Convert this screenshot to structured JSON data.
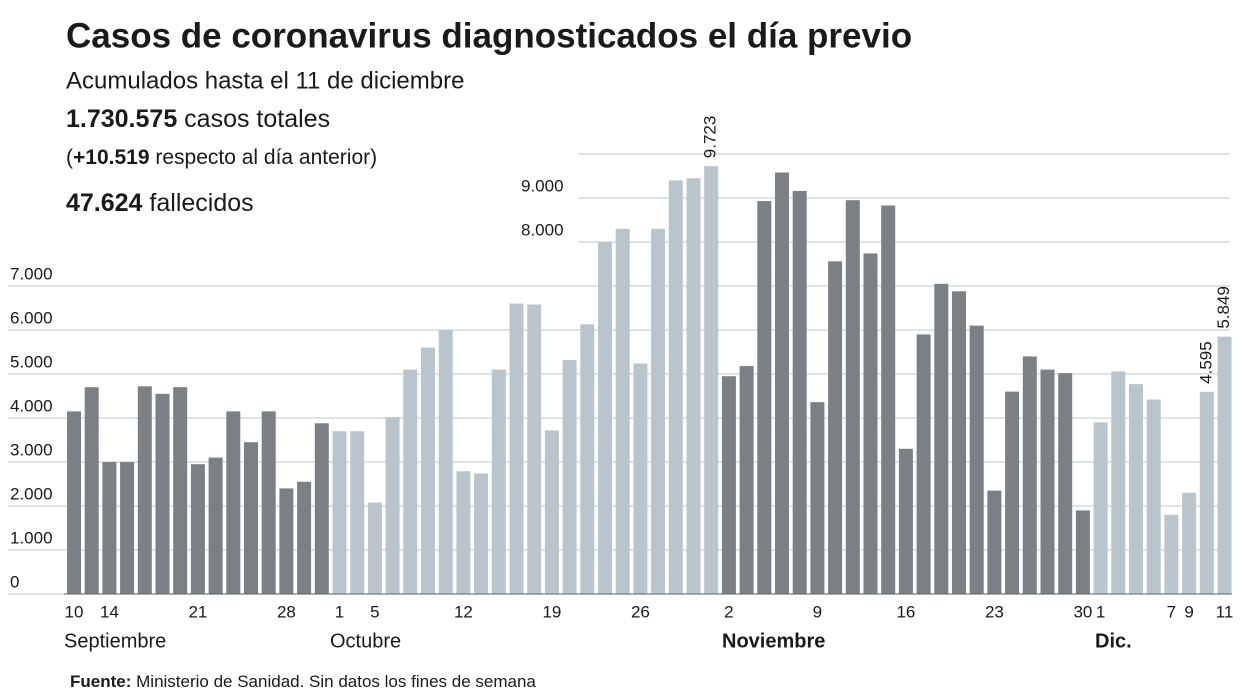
{
  "chart_data": {
    "type": "bar",
    "title": "Casos de coronavirus diagnosticados el día previo",
    "subtitle": "Acumulados hasta el 11 de diciembre",
    "stats": [
      {
        "prefix": null,
        "bold": "1.730.575",
        "text": "casos totales"
      },
      {
        "prefix": "(",
        "bold": "+10.519",
        "text": "respecto al día anterior)"
      },
      {
        "prefix": null,
        "bold": "47.624",
        "text": "fallecidos"
      }
    ],
    "source": {
      "bold": "Fuente:",
      "text": "Ministerio de Sanidad. Sin datos los fines de semana"
    },
    "ylim": [
      0,
      10000
    ],
    "yticks": [
      {
        "value": 0,
        "label": "0"
      },
      {
        "value": 1000,
        "label": "1.000"
      },
      {
        "value": 2000,
        "label": "2.000"
      },
      {
        "value": 3000,
        "label": "3.000"
      },
      {
        "value": 4000,
        "label": "4.000"
      },
      {
        "value": 5000,
        "label": "5.000"
      },
      {
        "value": 6000,
        "label": "6.000"
      },
      {
        "value": 7000,
        "label": "7.000"
      },
      {
        "value": 8000,
        "label": "8.000"
      },
      {
        "value": 9000,
        "label": "9.000"
      }
    ],
    "grid": true,
    "series": [
      {
        "name": "Septiembre",
        "color": "#7b8085",
        "bold": false,
        "categories": [
          "10",
          null,
          "14",
          null,
          null,
          null,
          null,
          "21",
          null,
          null,
          null,
          null,
          "28",
          null,
          null
        ],
        "values": [
          4150,
          4700,
          3000,
          3000,
          4720,
          4550,
          4700,
          2950,
          3100,
          4150,
          3450,
          4150,
          2400,
          2550,
          3880
        ]
      },
      {
        "name": "Octubre",
        "color": "#b9c5cc",
        "bold": false,
        "categories": [
          "1",
          null,
          "5",
          null,
          null,
          null,
          null,
          "12",
          null,
          null,
          null,
          null,
          "19",
          null,
          null,
          null,
          null,
          "26",
          null,
          null,
          null,
          null
        ],
        "values": [
          3700,
          3700,
          2080,
          4020,
          5100,
          5600,
          6000,
          2790,
          2740,
          5100,
          6600,
          6580,
          3720,
          5320,
          6130,
          8000,
          8300,
          5240,
          8300,
          9400,
          9450,
          9723
        ],
        "value_labels": [
          null,
          null,
          null,
          null,
          null,
          null,
          null,
          null,
          null,
          null,
          null,
          null,
          null,
          null,
          null,
          null,
          null,
          null,
          null,
          null,
          null,
          "9.723"
        ]
      },
      {
        "name": "Noviembre",
        "color": "#7b8085",
        "bold": true,
        "categories": [
          "2",
          null,
          null,
          null,
          null,
          "9",
          null,
          null,
          null,
          null,
          "16",
          null,
          null,
          null,
          null,
          "23",
          null,
          null,
          null,
          null,
          "30"
        ],
        "values": [
          4950,
          5180,
          8930,
          9580,
          9160,
          4360,
          7560,
          8950,
          7740,
          8830,
          3300,
          5900,
          7050,
          6880,
          6100,
          2350,
          4600,
          5400,
          5100,
          5020,
          1900
        ]
      },
      {
        "name": "Dic.",
        "color": "#b9c5cc",
        "bold": true,
        "categories": [
          "1",
          null,
          null,
          null,
          "7",
          "9",
          null,
          "11"
        ],
        "values": [
          3900,
          5060,
          4770,
          4420,
          1800,
          2300,
          4595,
          5849
        ],
        "value_labels": [
          null,
          null,
          null,
          null,
          null,
          null,
          "4.595",
          "5.849"
        ]
      }
    ]
  }
}
